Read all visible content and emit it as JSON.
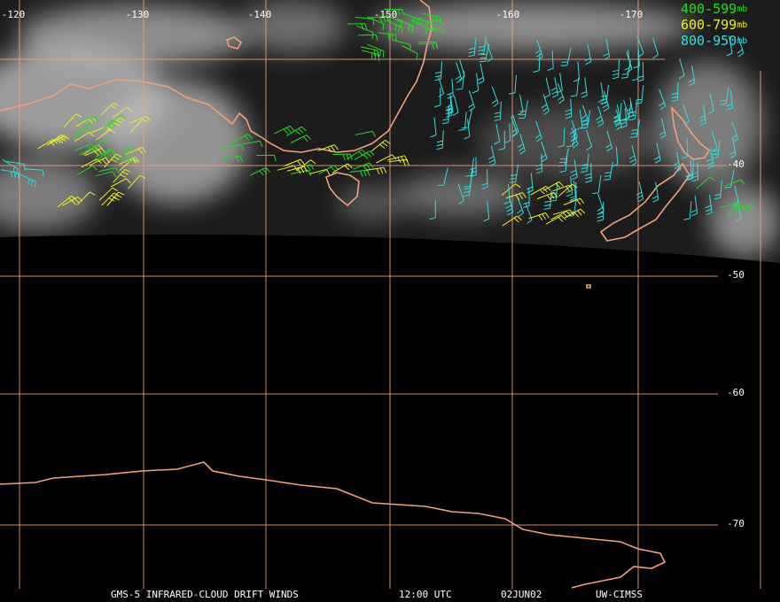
{
  "map": {
    "lon_labels": [
      "-120",
      "-130",
      "-140",
      "-150",
      "-160",
      "-170"
    ],
    "lat_labels": [
      "-40",
      "-50",
      "-60",
      "-70"
    ],
    "legend": [
      {
        "label": "400-599",
        "unit": "mb",
        "color": "#22dd22"
      },
      {
        "label": "600-799",
        "unit": "mb",
        "color": "#eeee22"
      },
      {
        "label": "800-950",
        "unit": "mb",
        "color": "#33dddd"
      }
    ],
    "footer": {
      "title": "GMS-5 INFRARED-CLOUD DRIFT WINDS",
      "time": "12:00 UTC",
      "date": "02JUN02",
      "source": "UW-CIMSS"
    }
  }
}
